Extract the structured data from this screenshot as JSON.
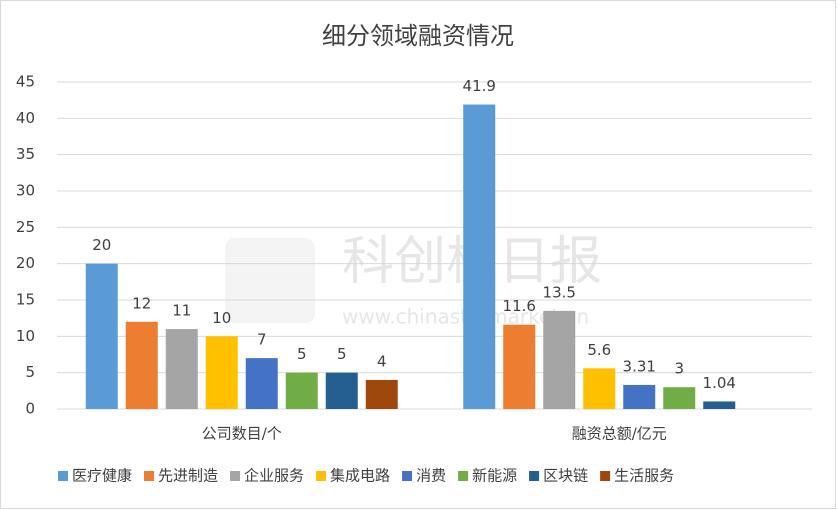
{
  "chart_data": {
    "type": "bar",
    "title": "细分领域融资情况",
    "watermark": "科创板日报",
    "watermark_url": "www.chinastarmarket.cn",
    "categories": [
      "公司数目/个",
      "融资总额/亿元"
    ],
    "series": [
      {
        "name": "医疗健康",
        "color": "#5b9bd5",
        "values": [
          20,
          41.9
        ]
      },
      {
        "name": "先进制造",
        "color": "#ed7d31",
        "values": [
          12,
          11.6
        ]
      },
      {
        "name": "企业服务",
        "color": "#a5a5a5",
        "values": [
          11,
          13.5
        ]
      },
      {
        "name": "集成电路",
        "color": "#ffc000",
        "values": [
          10,
          5.6
        ]
      },
      {
        "name": "消费",
        "color": "#4472c4",
        "values": [
          7,
          3.31
        ]
      },
      {
        "name": "新能源",
        "color": "#70ad47",
        "values": [
          5,
          3
        ]
      },
      {
        "name": "区块链",
        "color": "#255e91",
        "values": [
          5,
          1.04
        ]
      },
      {
        "name": "生活服务",
        "color": "#9e480e",
        "values": [
          4,
          null
        ]
      }
    ],
    "ylim": [
      0,
      45
    ],
    "yticks": [
      0,
      5,
      10,
      15,
      20,
      25,
      30,
      35,
      40,
      45
    ],
    "grid": true,
    "legend": "bottom"
  }
}
